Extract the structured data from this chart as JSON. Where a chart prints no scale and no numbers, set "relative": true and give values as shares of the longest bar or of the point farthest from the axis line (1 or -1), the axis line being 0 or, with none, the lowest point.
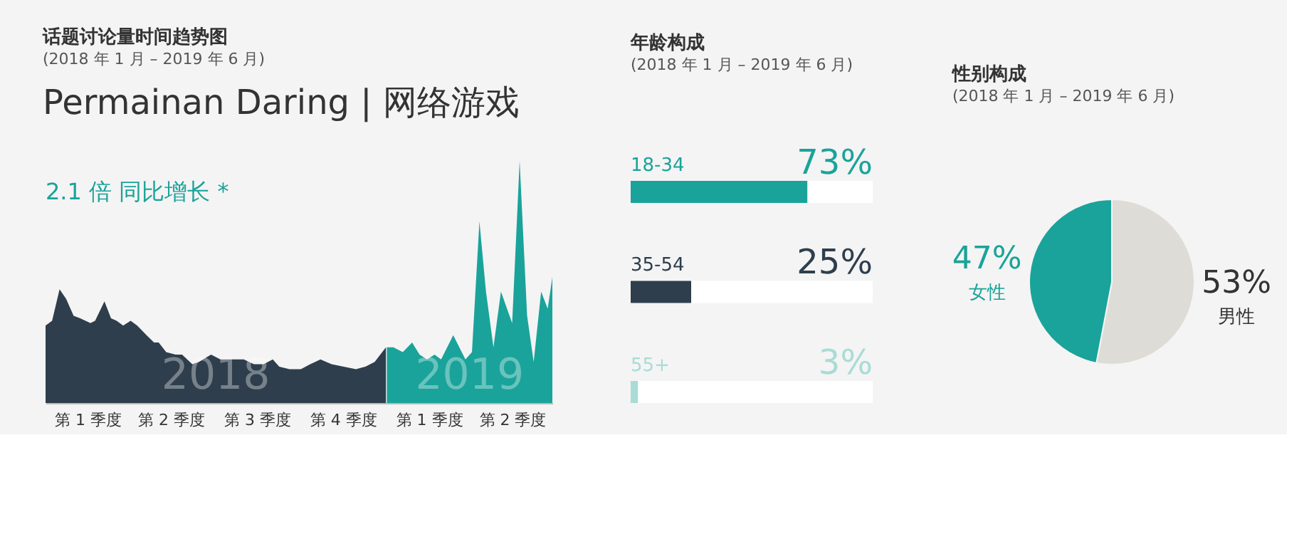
{
  "chart_data": [
    {
      "type": "area",
      "title": "话题讨论量时间趋势图",
      "subtitle": "(2018 年 1 月 – 2019 年 6 月)",
      "relative": true,
      "tick_labels": "x",
      "grid": false,
      "legend": false,
      "annotations": [
        "Permainan Daring | 网络游戏",
        "2.1 倍 同比增长 *"
      ],
      "xlim": [
        "2018-01-01",
        "2019-06-27"
      ],
      "xticks": [
        {
          "value": "2018-02-15",
          "label": "第 1 季度"
        },
        {
          "value": "2018-05-15",
          "label": "第 2 季度"
        },
        {
          "value": "2018-08-15",
          "label": "第 3 季度"
        },
        {
          "value": "2018-11-15",
          "label": "第 4 季度"
        },
        {
          "value": "2019-02-15",
          "label": "第 1 季度"
        },
        {
          "value": "2019-05-15",
          "label": "第 2 季度"
        }
      ],
      "series": [
        {
          "name": "2018",
          "color": "#2e3e4c",
          "x": [
            "2018-01-01",
            "2018-01-08",
            "2018-01-16",
            "2018-01-23",
            "2018-01-31",
            "2018-02-07",
            "2018-02-18",
            "2018-02-23",
            "2018-03-05",
            "2018-03-12",
            "2018-03-18",
            "2018-03-25",
            "2018-04-02",
            "2018-04-09",
            "2018-04-19",
            "2018-04-27",
            "2018-05-02",
            "2018-05-10",
            "2018-05-20",
            "2018-05-27",
            "2018-06-07",
            "2018-06-14",
            "2018-06-27",
            "2018-07-07",
            "2018-07-20",
            "2018-08-01",
            "2018-08-12",
            "2018-08-22",
            "2018-09-01",
            "2018-09-08",
            "2018-09-19",
            "2018-10-01",
            "2018-10-11",
            "2018-10-22",
            "2018-11-03",
            "2018-11-16",
            "2018-11-29",
            "2018-12-09",
            "2018-12-19",
            "2018-12-31"
          ],
          "values": [
            0.32,
            0.34,
            0.47,
            0.43,
            0.36,
            0.35,
            0.33,
            0.34,
            0.42,
            0.35,
            0.34,
            0.32,
            0.34,
            0.32,
            0.28,
            0.25,
            0.25,
            0.21,
            0.2,
            0.2,
            0.16,
            0.17,
            0.2,
            0.18,
            0.18,
            0.18,
            0.16,
            0.16,
            0.18,
            0.15,
            0.14,
            0.14,
            0.16,
            0.18,
            0.16,
            0.15,
            0.14,
            0.15,
            0.17,
            0.23
          ]
        },
        {
          "name": "2019",
          "color": "#1aa39a",
          "x": [
            "2019-01-01",
            "2019-01-08",
            "2019-01-18",
            "2019-01-28",
            "2019-02-05",
            "2019-02-13",
            "2019-02-21",
            "2019-02-28",
            "2019-03-13",
            "2019-03-26",
            "2019-04-02",
            "2019-04-10",
            "2019-04-17",
            "2019-04-25",
            "2019-05-03",
            "2019-05-15",
            "2019-05-23",
            "2019-05-31",
            "2019-06-07",
            "2019-06-15",
            "2019-06-22",
            "2019-06-27"
          ],
          "values": [
            0.23,
            0.23,
            0.21,
            0.25,
            0.2,
            0.18,
            0.2,
            0.18,
            0.28,
            0.18,
            0.21,
            0.75,
            0.46,
            0.23,
            0.46,
            0.33,
            1,
            0.36,
            0.17,
            0.46,
            0.39,
            0.52
          ]
        }
      ]
    },
    {
      "type": "bar",
      "orientation": "horizontal",
      "title": "年龄构成",
      "subtitle": "(2018 年 1 月 – 2019 年 6 月)",
      "tick_labels": false,
      "grid": false,
      "legend": false,
      "categories": [
        "18-34",
        "35-54",
        "55+"
      ],
      "values": [
        73,
        25,
        3
      ],
      "colors": [
        "#1aa39a",
        "#2e3e4c",
        "#a8dcd5"
      ],
      "value_labels": [
        "73%",
        "25%",
        "3%"
      ],
      "xlim": [
        0,
        100
      ]
    },
    {
      "type": "pie",
      "title": "性别构成",
      "subtitle": "(2018 年 1 月 – 2019 年 6 月)",
      "legend": false,
      "categories": [
        "男性",
        "女性"
      ],
      "values": [
        53,
        47
      ],
      "colors": [
        "#dedcd6",
        "#1aa39a"
      ],
      "value_labels": [
        "53%",
        "47%"
      ]
    }
  ]
}
